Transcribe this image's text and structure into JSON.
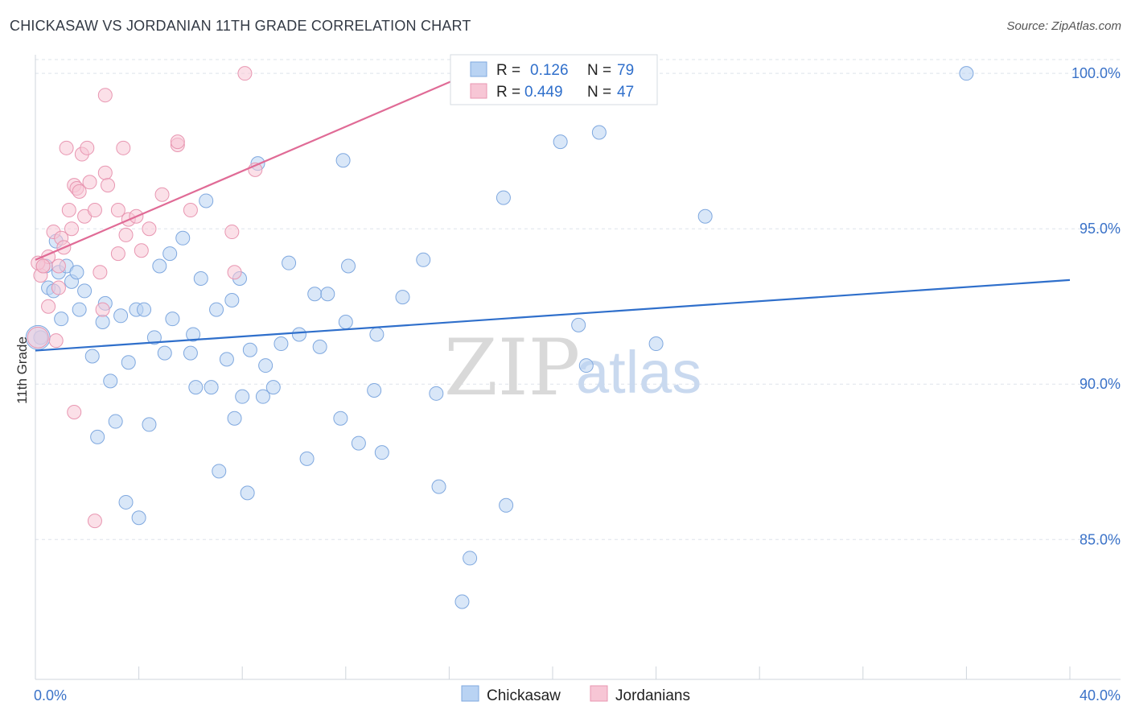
{
  "title": "CHICKASAW VS JORDANIAN 11TH GRADE CORRELATION CHART",
  "source": "Source: ZipAtlas.com",
  "watermark": {
    "zip": "ZIP",
    "atlas": "atlas"
  },
  "legend_box": {
    "rows": [
      {
        "r_label": "R =",
        "r_value": "0.126",
        "n_label": "N =",
        "n_value": "79"
      },
      {
        "r_label": "R =",
        "r_value": "0.449",
        "n_label": "N =",
        "n_value": "47"
      }
    ]
  },
  "bottom_legend": [
    "Chickasaw",
    "Jordanians"
  ],
  "colors": {
    "blue_fill": "#b9d3f3",
    "blue_stroke": "#7fa8df",
    "blue_line": "#2f6fcb",
    "pink_fill": "#f7c6d5",
    "pink_stroke": "#e896b1",
    "pink_line": "#e06b96",
    "tick_text": "#3a72c8",
    "grid": "#dde3ea"
  },
  "chart_data": {
    "type": "scatter",
    "title": "CHICKASAW VS JORDANIAN 11TH GRADE CORRELATION CHART",
    "xlabel": "",
    "ylabel": "11th Grade",
    "xlim": [
      0,
      40
    ],
    "ylim": [
      80.5,
      100.6
    ],
    "x_tick_labels": [
      "0.0%",
      "40.0%"
    ],
    "y_ticks": [
      85,
      90,
      95,
      100
    ],
    "y_tick_labels": [
      "85.0%",
      "90.0%",
      "95.0%",
      "100.0%"
    ],
    "grid": "horizontal dashed",
    "legend": "top-center and bottom",
    "series": [
      {
        "name": "Chickasaw",
        "r": 0.126,
        "n": 79,
        "trend": [
          [
            0,
            91.08
          ],
          [
            40,
            93.35
          ]
        ],
        "points": [
          [
            0.2,
            91.5
          ],
          [
            0.4,
            93.8
          ],
          [
            0.5,
            93.1
          ],
          [
            0.7,
            93.0
          ],
          [
            0.8,
            94.6
          ],
          [
            0.9,
            93.6
          ],
          [
            1.0,
            92.1
          ],
          [
            1.2,
            93.8
          ],
          [
            1.4,
            93.3
          ],
          [
            1.6,
            93.6
          ],
          [
            1.7,
            92.4
          ],
          [
            1.9,
            93.0
          ],
          [
            2.2,
            90.9
          ],
          [
            2.4,
            88.3
          ],
          [
            2.6,
            92.0
          ],
          [
            2.7,
            92.6
          ],
          [
            2.9,
            90.1
          ],
          [
            3.1,
            88.8
          ],
          [
            3.3,
            92.2
          ],
          [
            3.5,
            86.2
          ],
          [
            3.6,
            90.7
          ],
          [
            3.9,
            92.4
          ],
          [
            4.0,
            85.7
          ],
          [
            4.2,
            92.4
          ],
          [
            4.4,
            88.7
          ],
          [
            4.6,
            91.5
          ],
          [
            4.8,
            93.8
          ],
          [
            5.0,
            91.0
          ],
          [
            5.2,
            94.2
          ],
          [
            5.3,
            92.1
          ],
          [
            5.7,
            94.7
          ],
          [
            6.0,
            91.0
          ],
          [
            6.1,
            91.6
          ],
          [
            6.2,
            89.9
          ],
          [
            6.4,
            93.4
          ],
          [
            6.6,
            95.9
          ],
          [
            6.8,
            89.9
          ],
          [
            7.0,
            92.4
          ],
          [
            7.1,
            87.2
          ],
          [
            7.4,
            90.8
          ],
          [
            7.6,
            92.7
          ],
          [
            7.7,
            88.9
          ],
          [
            7.9,
            93.4
          ],
          [
            8.0,
            89.6
          ],
          [
            8.2,
            86.5
          ],
          [
            8.3,
            91.1
          ],
          [
            8.6,
            97.1
          ],
          [
            8.8,
            89.6
          ],
          [
            8.9,
            90.6
          ],
          [
            9.2,
            89.9
          ],
          [
            9.5,
            91.3
          ],
          [
            9.8,
            93.9
          ],
          [
            10.2,
            91.6
          ],
          [
            10.5,
            87.6
          ],
          [
            10.8,
            92.9
          ],
          [
            11.0,
            91.2
          ],
          [
            11.3,
            92.9
          ],
          [
            11.8,
            88.9
          ],
          [
            11.9,
            97.2
          ],
          [
            12.0,
            92.0
          ],
          [
            12.1,
            93.8
          ],
          [
            12.5,
            88.1
          ],
          [
            13.1,
            89.8
          ],
          [
            13.2,
            91.6
          ],
          [
            13.4,
            87.8
          ],
          [
            14.2,
            92.8
          ],
          [
            15.0,
            94.0
          ],
          [
            15.5,
            89.7
          ],
          [
            15.6,
            86.7
          ],
          [
            16.8,
            84.4
          ],
          [
            16.5,
            83.0
          ],
          [
            18.1,
            96.0
          ],
          [
            18.2,
            86.1
          ],
          [
            20.3,
            97.8
          ],
          [
            21.0,
            91.9
          ],
          [
            21.3,
            90.6
          ],
          [
            21.8,
            98.1
          ],
          [
            24.0,
            91.3
          ],
          [
            25.9,
            95.4
          ],
          [
            36.0,
            100.0
          ]
        ]
      },
      {
        "name": "Jordanians",
        "r": 0.449,
        "n": 47,
        "trend": [
          [
            0,
            94.0
          ],
          [
            16.8,
            100.0
          ]
        ],
        "points": [
          [
            0.2,
            93.5
          ],
          [
            0.3,
            93.8
          ],
          [
            0.5,
            94.1
          ],
          [
            0.5,
            92.5
          ],
          [
            0.7,
            94.9
          ],
          [
            0.8,
            91.4
          ],
          [
            0.9,
            93.1
          ],
          [
            0.9,
            93.8
          ],
          [
            1.0,
            94.7
          ],
          [
            1.1,
            94.4
          ],
          [
            1.2,
            97.6
          ],
          [
            1.3,
            95.6
          ],
          [
            1.4,
            95.0
          ],
          [
            1.5,
            96.4
          ],
          [
            1.5,
            89.1
          ],
          [
            1.6,
            96.3
          ],
          [
            1.7,
            96.2
          ],
          [
            1.8,
            97.4
          ],
          [
            1.9,
            95.4
          ],
          [
            2.0,
            97.6
          ],
          [
            2.1,
            96.5
          ],
          [
            2.3,
            95.6
          ],
          [
            2.3,
            85.6
          ],
          [
            2.5,
            93.6
          ],
          [
            2.6,
            92.4
          ],
          [
            2.7,
            96.8
          ],
          [
            2.7,
            99.3
          ],
          [
            2.8,
            96.4
          ],
          [
            3.2,
            94.2
          ],
          [
            3.2,
            95.6
          ],
          [
            3.4,
            97.6
          ],
          [
            3.5,
            94.8
          ],
          [
            3.6,
            95.3
          ],
          [
            3.9,
            95.4
          ],
          [
            4.1,
            94.3
          ],
          [
            4.4,
            95.0
          ],
          [
            4.9,
            96.1
          ],
          [
            5.5,
            97.7
          ],
          [
            5.5,
            97.8
          ],
          [
            6.0,
            95.6
          ],
          [
            7.6,
            94.9
          ],
          [
            7.7,
            93.6
          ],
          [
            8.1,
            100.0
          ],
          [
            8.5,
            96.9
          ],
          [
            0.1,
            93.9
          ],
          [
            0.3,
            93.8
          ],
          [
            18.7,
            100.0
          ]
        ]
      }
    ]
  }
}
